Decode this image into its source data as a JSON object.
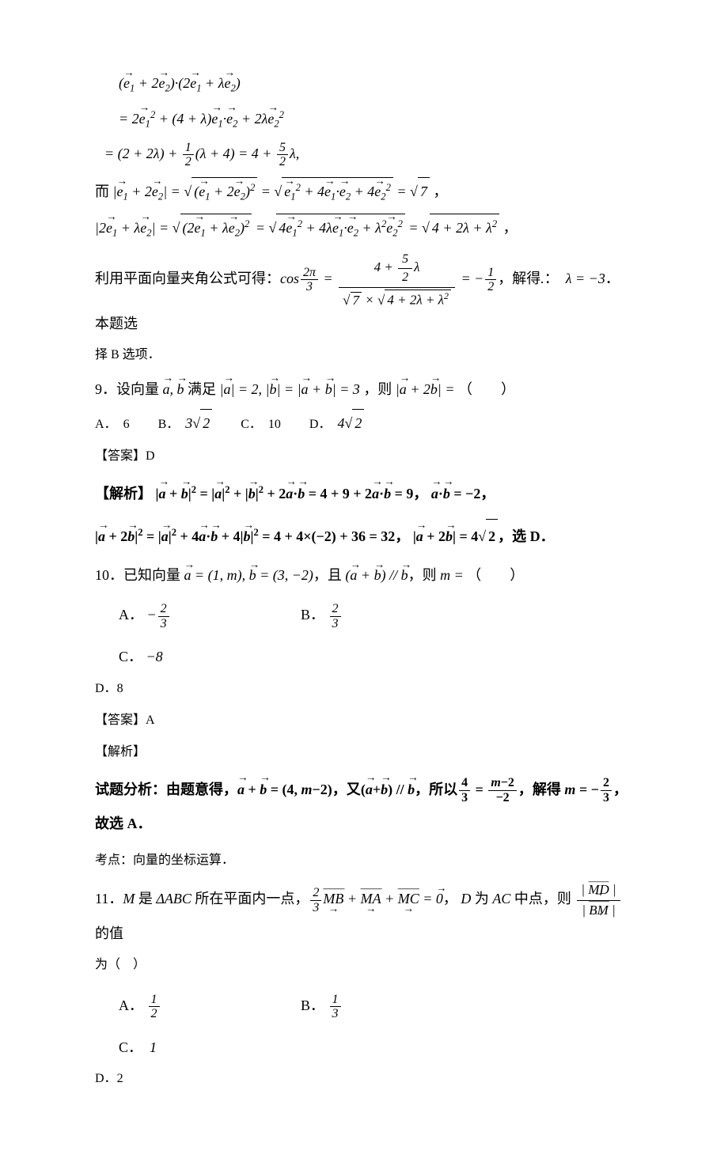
{
  "font_family": "SimSun",
  "math_font": "Times New Roman",
  "text_color": "#000000",
  "background_color": "#ffffff",
  "eq_block": {
    "line1": "( e⃗₁ + 2e⃗₂ )·( 2e⃗₁ + λe⃗₂ )",
    "line2": "= 2e⃗₁² + (4+λ)e⃗₁·e⃗₂ + 2λe⃗₂²",
    "line3_pre": "= (2 + 2λ) + ",
    "line3_frac_num": "1",
    "line3_frac_den": "2",
    "line3_mid": "(λ + 4) = 4 + ",
    "line3_frac2_num": "5",
    "line3_frac2_den": "2",
    "line3_post": "λ,",
    "line4_pre": "而",
    "line4_lhs": "| e⃗₁ + 2e⃗₂ | = ",
    "line4_sqrt1": "( e⃗₁ + 2e⃗₂ )²",
    "line4_eq": " = ",
    "line4_sqrt2": "e⃗₁² + 4e⃗₁·e⃗₂ + 4e⃗₂²",
    "line4_result": " = √7 ，",
    "line5_lhs": "| 2e⃗₁ + λe⃗₂ | = ",
    "line5_sqrt1": "( 2e⃗₁ + λe⃗₂ )²",
    "line5_sqrt2": "4e⃗₁² + 4λe⃗₁·e⃗₂ + λ²e⃗₂²",
    "line5_result": " = ",
    "line5_sqrt3": "4 + 2λ + λ²",
    "line5_end": " ，",
    "line6_pre": "利用平面向量夹角公式可得：cos",
    "line6_frac1_num": "2π",
    "line6_frac1_den": "3",
    "line6_mid": " = ",
    "line6_bignum_pre": "4 + ",
    "line6_bignum_frac_num": "5",
    "line6_bignum_frac_den": "2",
    "line6_bignum_post": "λ",
    "line6_bigden": "√7 × √(4 + 2λ + λ²)",
    "line6_eq2": " = −",
    "line6_frac2_num": "1",
    "line6_frac2_den": "2",
    "line6_post": "，解得.：  λ = −3．本题选",
    "line7": "择 B 选项．"
  },
  "q9": {
    "stem_pre": "9．设向量 ",
    "vecs": "a⃗, b⃗",
    "satisfy": " 满足 ",
    "cond": "|a⃗| = 2, |b⃗| = |a⃗ + b⃗| = 3",
    "then": " , 则 ",
    "target": "|a⃗ + 2b⃗|",
    "eq": " = （　　）",
    "optA_label": "A．",
    "optA_val": "6",
    "optB_label": "B．",
    "optB_val": "3√2",
    "optC_label": "C．",
    "optC_val": "10",
    "optD_label": "D．",
    "optD_val": "4√2",
    "answer_label": "【答案】",
    "answer": "D",
    "analysis_label": "【解析】",
    "ana1": "|a⃗ + b⃗|² = |a⃗|² + |b⃗|² + 2a⃗·b⃗ = 4 + 9 + 2a⃗·b⃗ = 9，a⃗·b⃗ = −2，",
    "ana2": "|a⃗ + 2b⃗|² = |a⃗|² + 4a⃗·b⃗ + 4|b⃗|² = 4 + 4×(−2) + 36 = 32，|a⃗ + 2b⃗| = 4√2，选 D．"
  },
  "q10": {
    "stem_pre": "10．已知向量 ",
    "a_def": "a⃗ = (1, m), b⃗ = (3, −2)",
    "and": "，且 ",
    "cond": "(a⃗ + b⃗) // b⃗",
    "then": "，则 ",
    "target": "m = ",
    "paren": "（　　）",
    "optA_label": "A．",
    "optA_num": "2",
    "optA_den": "3",
    "optA_sign": "−",
    "optB_label": "B．",
    "optB_num": "2",
    "optB_den": "3",
    "optC_label": "C．",
    "optC_val": "−8",
    "optD_label": "D．",
    "optD_val": "8",
    "answer_label": "【答案】",
    "answer": "A",
    "analysis_label": "【解析】",
    "ana_pre": "试题分析：由题意得，",
    "ana_sum": "a⃗ + b⃗ = (4, m−2)",
    "ana_mid": "，又",
    "ana_cond": "(a⃗+b⃗) // b⃗",
    "ana_so": "，所以",
    "ana_frac1_num": "4",
    "ana_frac1_den": "3",
    "ana_eq": " = ",
    "ana_frac2_num": "m−2",
    "ana_frac2_den": "−2",
    "ana_solve": "，解得 m = −",
    "ana_frac3_num": "2",
    "ana_frac3_den": "3",
    "ana_end": "，故选 A．",
    "point_label": "考点：",
    "point": "向量的坐标运算．"
  },
  "q11": {
    "stem_pre": "11．",
    "M": "M",
    "is": " 是 ",
    "tri": "ΔABC",
    "plane": " 所在平面内一点，",
    "frac_num": "2",
    "frac_den": "3",
    "vec_eq": "MB⃗ + MA⃗ + MC⃗ = 0⃗",
    "D": "， D 为 AC 中点，则 ",
    "ratio_num": "| MD⃗ |",
    "ratio_den": "| BM⃗ |",
    "post": " 的值",
    "line2": "为（　）",
    "optA_label": "A．",
    "optA_num": "1",
    "optA_den": "2",
    "optB_label": "B．",
    "optB_num": "1",
    "optB_den": "3",
    "optC_label": "C．",
    "optC_val": "1",
    "optD_label": "D．",
    "optD_val": "2"
  }
}
